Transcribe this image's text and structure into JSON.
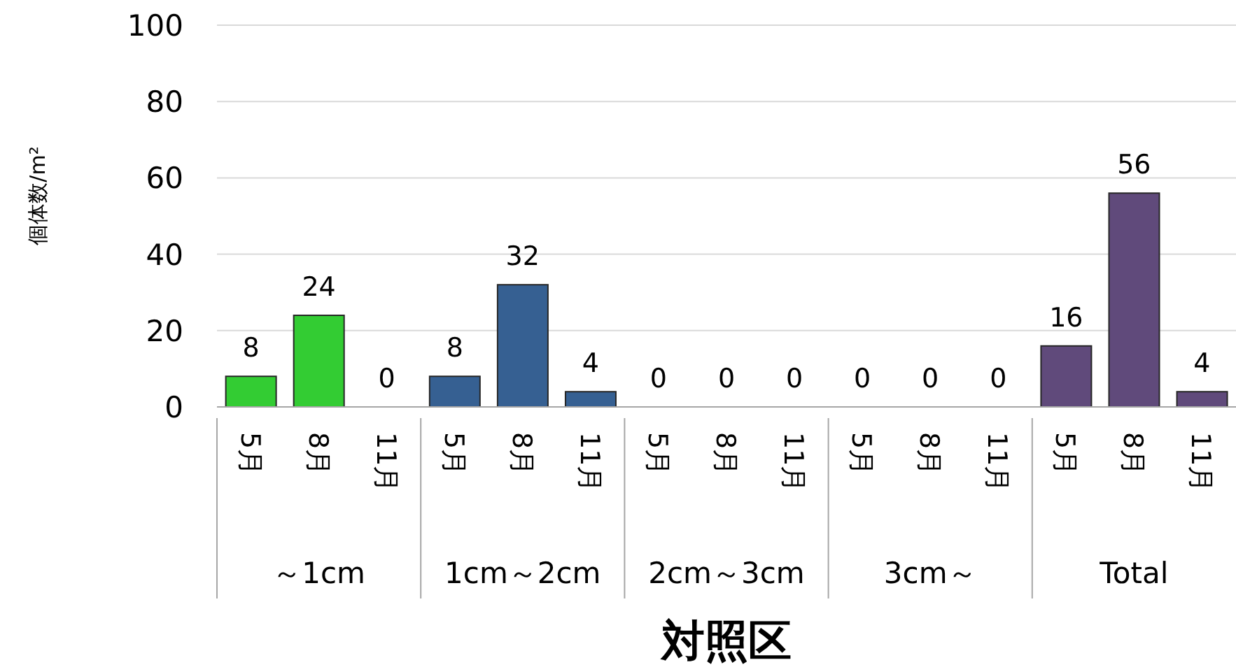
{
  "chart_data": {
    "type": "bar",
    "xlabel": "対照区",
    "ylabel": "個体数/m²",
    "categories": [
      "5月",
      "8月",
      "11月",
      "5月",
      "8月",
      "11月",
      "5月",
      "8月",
      "11月",
      "5月",
      "8月",
      "11月",
      "5月",
      "8月",
      "11月"
    ],
    "annotations": [
      "～1cm",
      "1cm～2cm",
      "2cm～3cm",
      "3cm～",
      "Total"
    ],
    "values": [
      8,
      24,
      0,
      8,
      32,
      4,
      0,
      0,
      0,
      0,
      0,
      0,
      16,
      56,
      4
    ],
    "colors": [
      "#33cc33",
      "#33cc33",
      "#33cc33",
      "#366092",
      "#366092",
      "#366092",
      "#366092",
      "#366092",
      "#366092",
      "#366092",
      "#366092",
      "#366092",
      "#604a7b",
      "#604a7b",
      "#604a7b"
    ],
    "ylim": [
      0,
      100
    ],
    "yticks": [
      0,
      20,
      40,
      60,
      80,
      100
    ],
    "grid": "y",
    "data_labels": true
  }
}
